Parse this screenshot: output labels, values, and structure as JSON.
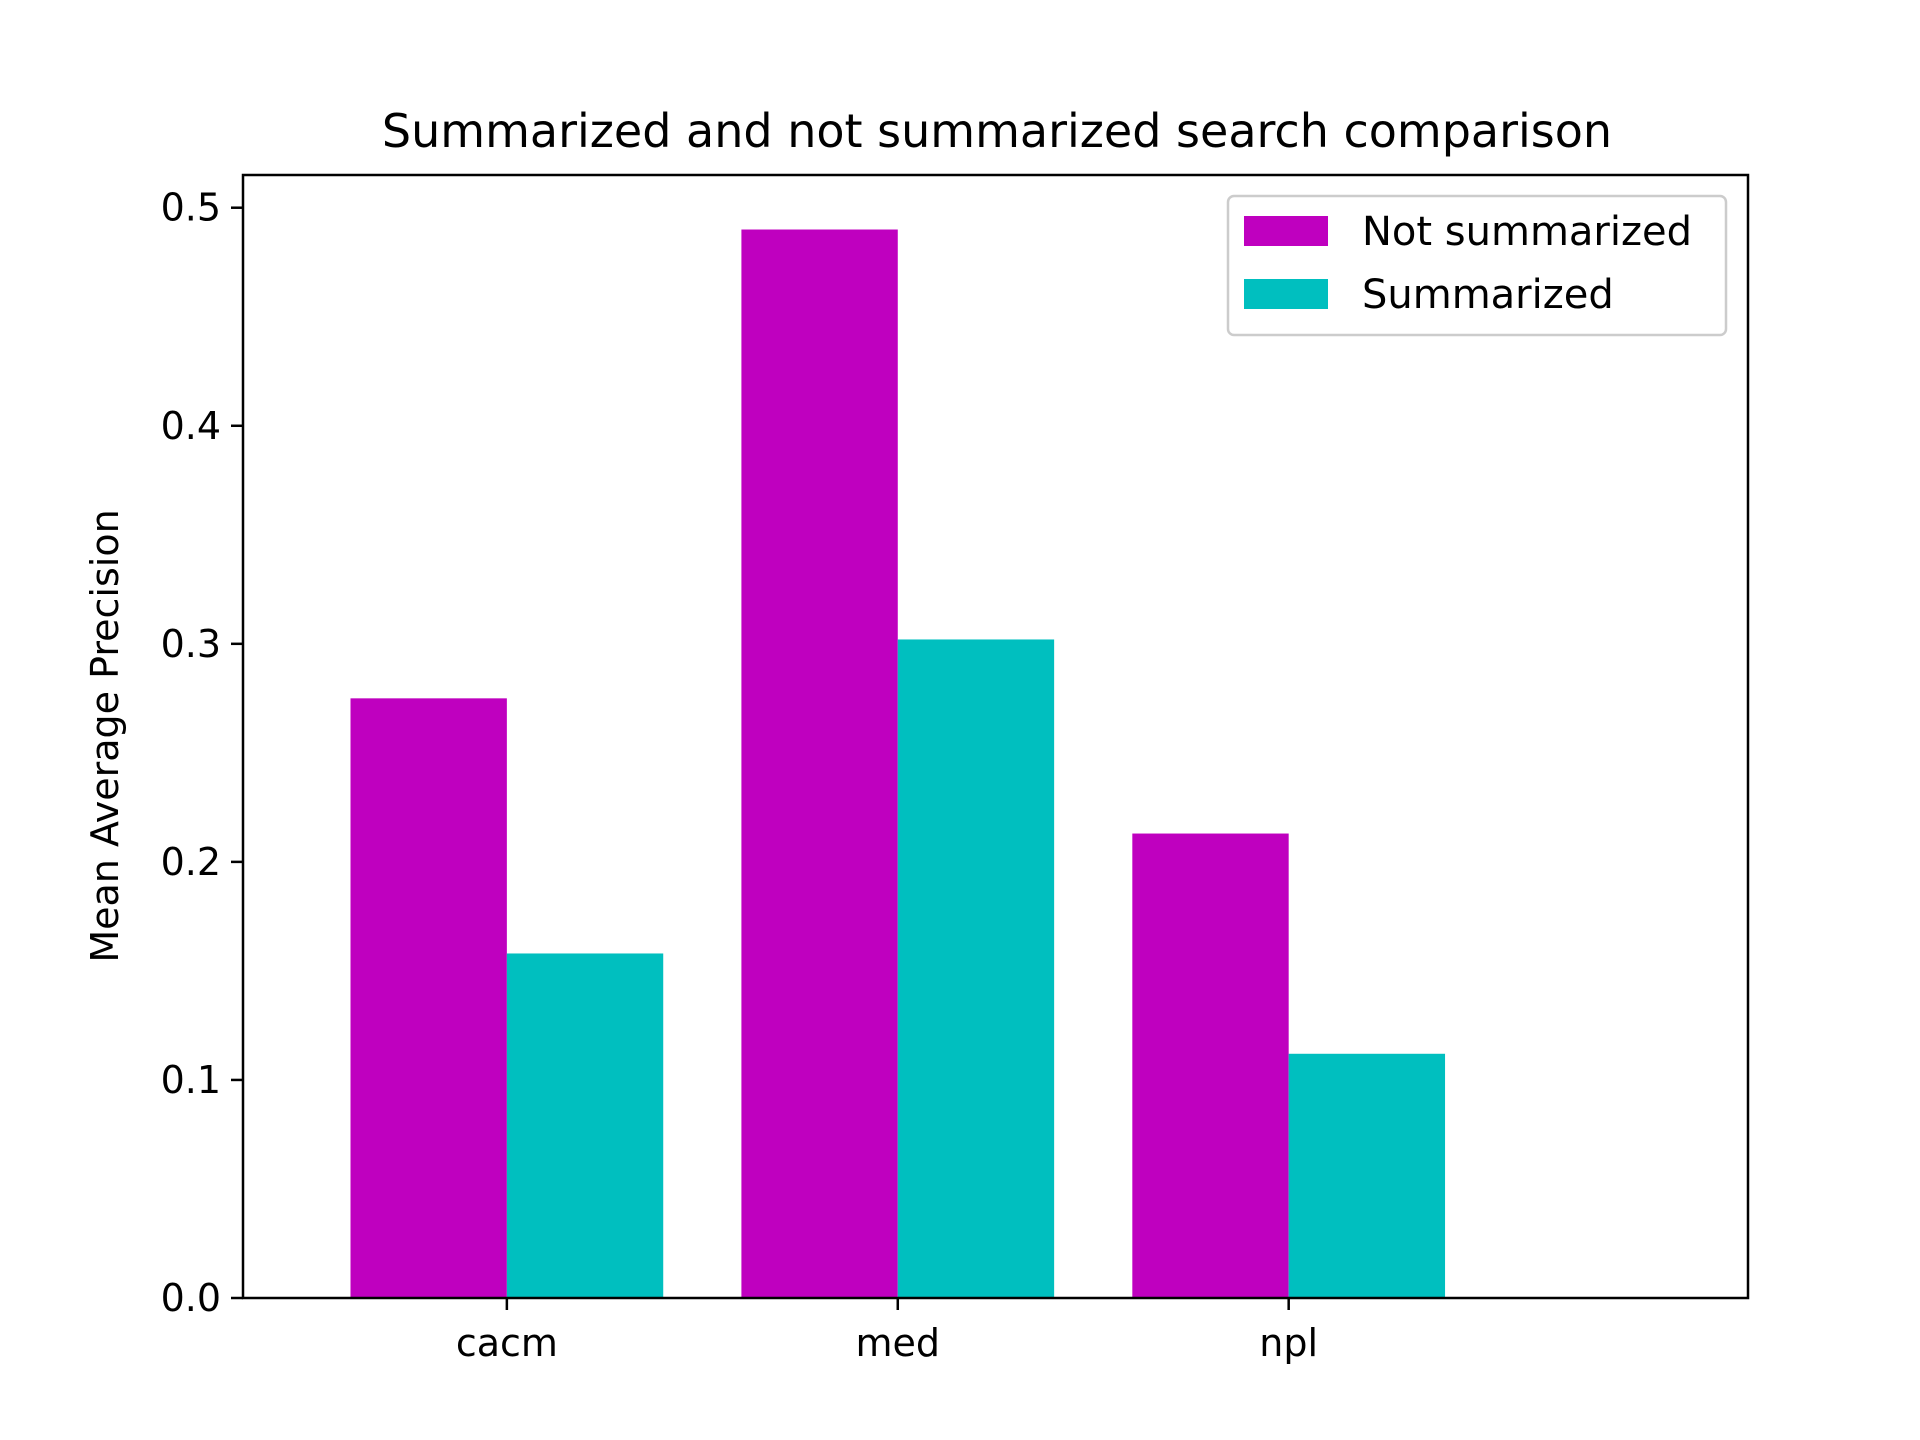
{
  "chart_data": {
    "type": "bar",
    "title": "Summarized and not summarized search comparison",
    "xlabel": "",
    "ylabel": "Mean Average Precision",
    "categories": [
      "cacm",
      "med",
      "npl"
    ],
    "series": [
      {
        "name": "Not summarized",
        "color": "#bf00bf",
        "values": [
          0.275,
          0.49,
          0.213
        ]
      },
      {
        "name": "Summarized",
        "color": "#00bfbf",
        "values": [
          0.158,
          0.302,
          0.112
        ]
      }
    ],
    "ylim": [
      0,
      0.515
    ],
    "yticks": [
      0.0,
      0.1,
      0.2,
      0.3,
      0.4,
      0.5
    ],
    "ytick_labels": [
      "0.0",
      "0.1",
      "0.2",
      "0.3",
      "0.4",
      "0.5"
    ],
    "legend_position": "top-right",
    "grid": false
  }
}
